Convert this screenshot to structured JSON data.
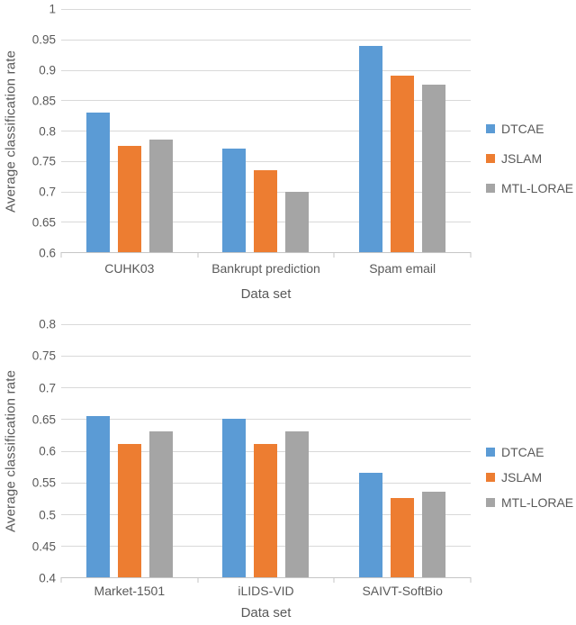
{
  "text_color": "#595959",
  "gridline_color": "#d9d9d9",
  "chart_data": [
    {
      "type": "bar",
      "title": "",
      "ylabel": "Average classification rate",
      "xlabel": "Data set",
      "ymin": 0.6,
      "ymax": 1.0,
      "ystep": 0.05,
      "ylim": [
        0.6,
        1.0
      ],
      "grid": true,
      "legend_position": "right",
      "yticks": [
        "1",
        "0.95",
        "0.9",
        "0.85",
        "0.8",
        "0.75",
        "0.7",
        "0.65",
        "0.6"
      ],
      "categories": [
        "CUHK03",
        "Bankrupt prediction",
        "Spam email"
      ],
      "series": [
        {
          "name": "DTCAE",
          "color": "#5B9BD5",
          "values": [
            0.83,
            0.77,
            0.94
          ]
        },
        {
          "name": "JSLAM",
          "color": "#ED7D31",
          "values": [
            0.775,
            0.735,
            0.89
          ]
        },
        {
          "name": "MTL-LORAE",
          "color": "#A5A5A5",
          "values": [
            0.785,
            0.7,
            0.875
          ]
        }
      ]
    },
    {
      "type": "bar",
      "title": "",
      "ylabel": "Average classification rate",
      "xlabel": "Data set",
      "ymin": 0.4,
      "ymax": 0.8,
      "ystep": 0.05,
      "ylim": [
        0.4,
        0.8
      ],
      "grid": true,
      "legend_position": "right",
      "yticks": [
        "0.8",
        "0.75",
        "0.7",
        "0.65",
        "0.6",
        "0.55",
        "0.5",
        "0.45",
        "0.4"
      ],
      "categories": [
        "Market-1501",
        "iLIDS-VID",
        "SAIVT-SoftBio"
      ],
      "series": [
        {
          "name": "DTCAE",
          "color": "#5B9BD5",
          "values": [
            0.655,
            0.65,
            0.565
          ]
        },
        {
          "name": "JSLAM",
          "color": "#ED7D31",
          "values": [
            0.61,
            0.61,
            0.525
          ]
        },
        {
          "name": "MTL-LORAE",
          "color": "#A5A5A5",
          "values": [
            0.63,
            0.63,
            0.535
          ]
        }
      ]
    }
  ]
}
